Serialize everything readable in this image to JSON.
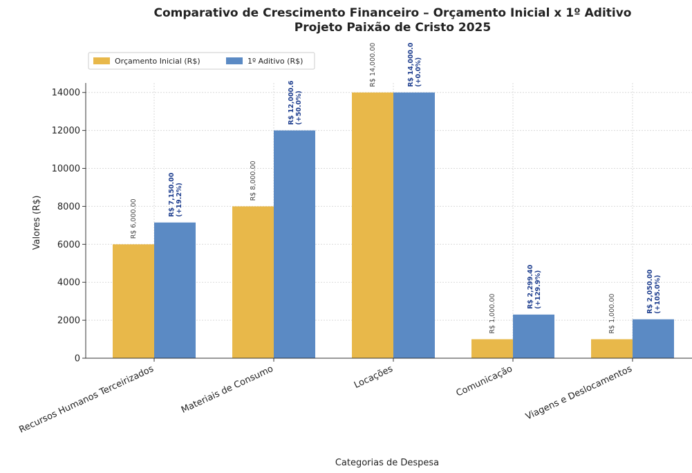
{
  "chart_data": {
    "type": "bar",
    "title": "Comparativo de Crescimento Financeiro – Orçamento Inicial x 1º Aditivo",
    "subtitle": "Projeto Paixão de Cristo 2025",
    "xlabel": "Categorias de Despesa",
    "ylabel": "Valores (R$)",
    "ylim": [
      0,
      14500
    ],
    "yticks": [
      0,
      2000,
      4000,
      6000,
      8000,
      10000,
      12000,
      14000
    ],
    "grid": true,
    "legend_position": "top-left",
    "categories": [
      "Recursos Humanos Terceirizados",
      "Materiais de Consumo",
      "Locações",
      "Comunicação",
      "Viagens e Deslocamentos"
    ],
    "series": [
      {
        "name": "Orçamento Inicial (R$)",
        "color": "#E8B84A",
        "values": [
          6000,
          8000,
          14000,
          1000,
          1000
        ],
        "labels": [
          "R$ 6,000.00",
          "R$ 8,000.00",
          "R$ 14,000.00",
          "R$ 1,000.00",
          "R$ 1,000.00"
        ]
      },
      {
        "name": "1º Aditivo (R$)",
        "color": "#5B8AC4",
        "values": [
          7150,
          12000.6,
          14000,
          2299.4,
          2050
        ],
        "labels": [
          "R$ 7,150.00",
          "R$ 12,000.6",
          "R$ 14,000.0",
          "R$ 2,299.40",
          "R$ 2,050.00"
        ],
        "pct_labels": [
          "(+19.2%)",
          "(+50.0%)",
          "(+0.0%)",
          "(+129.9%)",
          "(+105.0%)"
        ]
      }
    ]
  }
}
